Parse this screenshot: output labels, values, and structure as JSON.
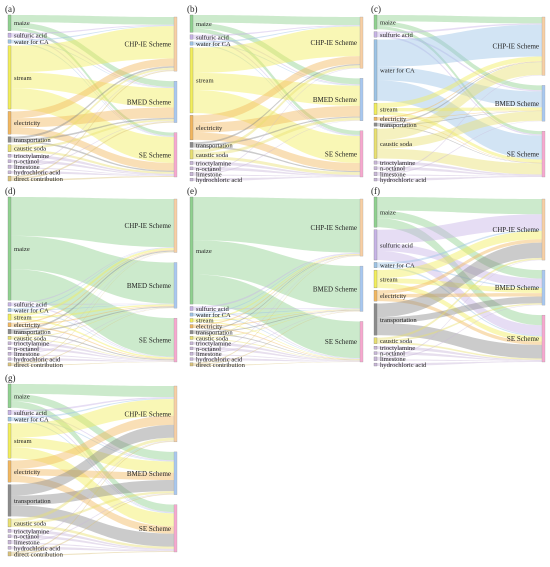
{
  "colors": {
    "maize": "#8fd18f",
    "sulfuric acid": "#c7b3e6",
    "water for CA": "#9cc3e6",
    "stream": "#f2ee5a",
    "electricity": "#f2b75e",
    "transportation": "#8c8c8c",
    "caustic soda": "#e9e070",
    "trioctylamine": "#c9b7d9",
    "n-octanol": "#c9b7d9",
    "limestone": "#c9b7d9",
    "hydrochloric acid": "#c9b7d9",
    "direct contribution": "#d9c27a",
    "CHP-IE Scheme": "#f8cfa4",
    "BMED Scheme": "#a8c8f0",
    "SE Scheme": "#f7a8cf"
  },
  "targets": [
    "CHP-IE Scheme",
    "BMED Scheme",
    "SE Scheme"
  ],
  "panels": [
    {
      "label": "(a)",
      "sources": [
        {
          "name": "maize",
          "w": [
            0.06,
            0.045,
            0.025
          ]
        },
        {
          "name": "sulfuric acid",
          "w": [
            0.006,
            0.006,
            0.006
          ]
        },
        {
          "name": "water for CA",
          "w": [
            0.004,
            0.003,
            0.003
          ]
        },
        {
          "name": "stream",
          "w": [
            0.25,
            0.15,
            0.2
          ]
        },
        {
          "name": "electricity",
          "w": [
            0.06,
            0.08,
            0.06
          ]
        },
        {
          "name": "transportation",
          "w": [
            0.012,
            0.01,
            0.01
          ]
        },
        {
          "name": "caustic soda",
          "w": [
            0.015,
            0.015,
            0.015
          ]
        },
        {
          "name": "trioctylamine",
          "w": [
            0.0,
            0.0,
            0.006
          ]
        },
        {
          "name": "n-octanol",
          "w": [
            0.0,
            0.0,
            0.004
          ]
        },
        {
          "name": "limestone",
          "w": [
            0.003,
            0.003,
            0.003
          ]
        },
        {
          "name": "hydrochloric acid",
          "w": [
            0.0,
            0.0,
            0.003
          ]
        },
        {
          "name": "direct contribution",
          "w": [
            0.008,
            0.008,
            0.008
          ]
        }
      ]
    },
    {
      "label": "(b)",
      "sources": [
        {
          "name": "maize",
          "w": [
            0.06,
            0.045,
            0.03
          ]
        },
        {
          "name": "sulfuric acid",
          "w": [
            0.006,
            0.006,
            0.006
          ]
        },
        {
          "name": "water for CA",
          "w": [
            0.004,
            0.003,
            0.003
          ]
        },
        {
          "name": "stream",
          "w": [
            0.22,
            0.15,
            0.2
          ]
        },
        {
          "name": "electricity",
          "w": [
            0.06,
            0.08,
            0.06
          ]
        },
        {
          "name": "transportation",
          "w": [
            0.008,
            0.008,
            0.008
          ]
        },
        {
          "name": "caustic soda",
          "w": [
            0.02,
            0.02,
            0.02
          ]
        },
        {
          "name": "trioctylamine",
          "w": [
            0.0,
            0.0,
            0.006
          ]
        },
        {
          "name": "n-octanol",
          "w": [
            0.0,
            0.0,
            0.004
          ]
        },
        {
          "name": "limestone",
          "w": [
            0.003,
            0.003,
            0.003
          ]
        },
        {
          "name": "hydrochloric acid",
          "w": [
            0.0,
            0.0,
            0.003
          ]
        }
      ]
    },
    {
      "label": "(c)",
      "sources": [
        {
          "name": "maize",
          "w": [
            0.04,
            0.03,
            0.02
          ]
        },
        {
          "name": "sulfuric acid",
          "w": [
            0.008,
            0.008,
            0.008
          ]
        },
        {
          "name": "water for CA",
          "w": [
            0.2,
            0.1,
            0.15
          ]
        },
        {
          "name": "stream",
          "w": [
            0.03,
            0.02,
            0.02
          ]
        },
        {
          "name": "electricity",
          "w": [
            0.003,
            0.002,
            0.002
          ]
        },
        {
          "name": "transportation",
          "w": [
            0.003,
            0.002,
            0.002
          ]
        },
        {
          "name": "caustic soda",
          "w": [
            0.08,
            0.06,
            0.07
          ]
        },
        {
          "name": "trioctylamine",
          "w": [
            0.0,
            0.0,
            0.006
          ]
        },
        {
          "name": "n-octanol",
          "w": [
            0.0,
            0.0,
            0.004
          ]
        },
        {
          "name": "limestone",
          "w": [
            0.003,
            0.003,
            0.003
          ]
        },
        {
          "name": "hydrochloric acid",
          "w": [
            0.0,
            0.0,
            0.003
          ]
        }
      ]
    },
    {
      "label": "(d)",
      "sources": [
        {
          "name": "maize",
          "w": [
            0.35,
            0.3,
            0.28
          ]
        },
        {
          "name": "sulfuric acid",
          "w": [
            0.003,
            0.003,
            0.003
          ]
        },
        {
          "name": "water for CA",
          "w": [
            0.002,
            0.002,
            0.002
          ]
        },
        {
          "name": "stream",
          "w": [
            0.015,
            0.01,
            0.01
          ]
        },
        {
          "name": "electricity",
          "w": [
            0.005,
            0.005,
            0.005
          ]
        },
        {
          "name": "transportation",
          "w": [
            0.008,
            0.006,
            0.006
          ]
        },
        {
          "name": "caustic soda",
          "w": [
            0.002,
            0.002,
            0.002
          ]
        },
        {
          "name": "trioctylamine",
          "w": [
            0.0,
            0.0,
            0.003
          ]
        },
        {
          "name": "n-octanol",
          "w": [
            0.0,
            0.0,
            0.002
          ]
        },
        {
          "name": "limestone",
          "w": [
            0.002,
            0.002,
            0.002
          ]
        },
        {
          "name": "hydrochloric acid",
          "w": [
            0.0,
            0.0,
            0.002
          ]
        },
        {
          "name": "direct contribution",
          "w": [
            0.002,
            0.002,
            0.002
          ]
        }
      ]
    },
    {
      "label": "(e)",
      "sources": [
        {
          "name": "maize",
          "w": [
            0.38,
            0.3,
            0.26
          ]
        },
        {
          "name": "sulfuric acid",
          "w": [
            0.006,
            0.004,
            0.004
          ]
        },
        {
          "name": "water for CA",
          "w": [
            0.002,
            0.002,
            0.002
          ]
        },
        {
          "name": "stream",
          "w": [
            0.004,
            0.003,
            0.003
          ]
        },
        {
          "name": "electricity",
          "w": [
            0.003,
            0.003,
            0.003
          ]
        },
        {
          "name": "transportation",
          "w": [
            0.003,
            0.003,
            0.003
          ]
        },
        {
          "name": "caustic soda",
          "w": [
            0.002,
            0.002,
            0.002
          ]
        },
        {
          "name": "trioctylamine",
          "w": [
            0.0,
            0.0,
            0.002
          ]
        },
        {
          "name": "n-octanol",
          "w": [
            0.0,
            0.0,
            0.002
          ]
        },
        {
          "name": "limestone",
          "w": [
            0.002,
            0.002,
            0.002
          ]
        },
        {
          "name": "hydrochloric acid",
          "w": [
            0.0,
            0.0,
            0.002
          ]
        },
        {
          "name": "direct contribution",
          "w": [
            0.002,
            0.002,
            0.002
          ]
        }
      ]
    },
    {
      "label": "(f)",
      "sources": [
        {
          "name": "maize",
          "w": [
            0.09,
            0.05,
            0.06
          ]
        },
        {
          "name": "sulfuric acid",
          "w": [
            0.09,
            0.05,
            0.06
          ]
        },
        {
          "name": "water for CA",
          "w": [
            0.008,
            0.006,
            0.006
          ]
        },
        {
          "name": "stream",
          "w": [
            0.05,
            0.03,
            0.03
          ]
        },
        {
          "name": "electricity",
          "w": [
            0.02,
            0.02,
            0.02
          ]
        },
        {
          "name": "transportation",
          "w": [
            0.09,
            0.04,
            0.08
          ]
        },
        {
          "name": "caustic soda",
          "w": [
            0.01,
            0.008,
            0.008
          ]
        },
        {
          "name": "trioctylamine",
          "w": [
            0.0,
            0.0,
            0.004
          ]
        },
        {
          "name": "n-octanol",
          "w": [
            0.0,
            0.0,
            0.003
          ]
        },
        {
          "name": "limestone",
          "w": [
            0.003,
            0.003,
            0.003
          ]
        },
        {
          "name": "hydrochloric acid",
          "w": [
            0.0,
            0.0,
            0.003
          ]
        }
      ]
    },
    {
      "label": "(g)",
      "sources": [
        {
          "name": "maize",
          "w": [
            0.06,
            0.045,
            0.04
          ]
        },
        {
          "name": "sulfuric acid",
          "w": [
            0.006,
            0.004,
            0.004
          ]
        },
        {
          "name": "water for CA",
          "w": [
            0.004,
            0.003,
            0.003
          ]
        },
        {
          "name": "stream",
          "w": [
            0.09,
            0.06,
            0.07
          ]
        },
        {
          "name": "electricity",
          "w": [
            0.05,
            0.04,
            0.04
          ]
        },
        {
          "name": "transportation",
          "w": [
            0.07,
            0.06,
            0.07
          ]
        },
        {
          "name": "caustic soda",
          "w": [
            0.015,
            0.012,
            0.012
          ]
        },
        {
          "name": "trioctylamine",
          "w": [
            0.0,
            0.0,
            0.004
          ]
        },
        {
          "name": "n-octanol",
          "w": [
            0.0,
            0.0,
            0.003
          ]
        },
        {
          "name": "limestone",
          "w": [
            0.003,
            0.003,
            0.003
          ]
        },
        {
          "name": "hydrochloric acid",
          "w": [
            0.0,
            0.0,
            0.003
          ]
        },
        {
          "name": "direct contribution",
          "w": [
            0.004,
            0.004,
            0.004
          ]
        }
      ]
    }
  ]
}
